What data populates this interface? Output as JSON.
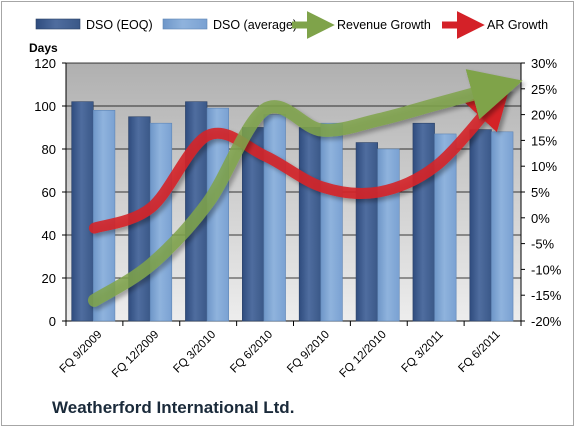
{
  "company_name": "Weatherford International Ltd.",
  "colors": {
    "plot_bg": "#c0c0c0",
    "bar_eoq": "#4f6d9f",
    "bar_avg": "#8fb3dd",
    "revenue": "#7fa34a",
    "ar": "#d42128",
    "grid": "#000000"
  },
  "chart_data": {
    "type": "bar",
    "title": "",
    "ylabel": "Days",
    "ylim": [
      0,
      120
    ],
    "y_ticks": [
      0,
      20,
      40,
      60,
      80,
      100,
      120
    ],
    "y2lim": [
      -20,
      30
    ],
    "y2_ticks": [
      "-20%",
      "-15%",
      "-10%",
      "-5%",
      "0%",
      "5%",
      "10%",
      "15%",
      "20%",
      "25%",
      "30%"
    ],
    "categories": [
      "FQ 9/2009",
      "FQ 12/2009",
      "FQ 3/2010",
      "FQ 6/2010",
      "FQ 9/2010",
      "FQ 12/2010",
      "FQ 3/2011",
      "FQ 6/2011"
    ],
    "legend_position": "top",
    "series": [
      {
        "name": "DSO (EOQ)",
        "type": "bar",
        "axis": "left",
        "values": [
          102,
          95,
          102,
          90,
          90,
          83,
          92,
          89
        ]
      },
      {
        "name": "DSO (average)",
        "type": "bar",
        "axis": "left",
        "values": [
          98,
          92,
          99,
          96,
          92,
          80,
          87,
          88
        ]
      },
      {
        "name": "Revenue Growth",
        "type": "line",
        "axis": "right",
        "unit": "%",
        "values": [
          -16,
          -9,
          3,
          21,
          17,
          19,
          22,
          25
        ]
      },
      {
        "name": "AR Growth",
        "type": "line",
        "axis": "right",
        "unit": "%",
        "values": [
          -2,
          2,
          16,
          12,
          6,
          5,
          10,
          22
        ]
      }
    ]
  }
}
